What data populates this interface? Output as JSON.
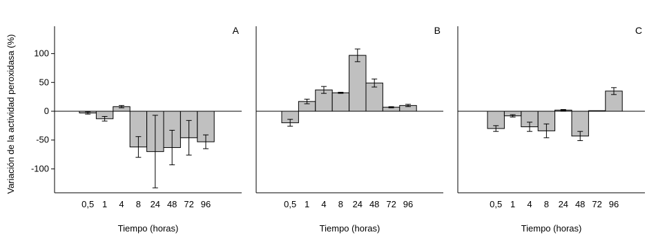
{
  "figure": {
    "ylabel": "Variación de la actividad peroxidasa (%)",
    "yticks": [
      100,
      50,
      0,
      -50,
      -100
    ],
    "colors": {
      "bar_fill": "#c0c0c0",
      "bar_stroke": "#000000",
      "axis": "#000000"
    }
  },
  "chart_data": [
    {
      "type": "bar",
      "panel_label": "A",
      "xlabel": "Tiempo (horas)",
      "categories": [
        "0,5",
        "1",
        "4",
        "8",
        "24",
        "48",
        "72",
        "96"
      ],
      "values": [
        -3,
        -13,
        8,
        -62,
        -70,
        -63,
        -46,
        -53
      ],
      "errors": [
        2,
        4,
        2,
        18,
        63,
        30,
        30,
        12
      ],
      "ylim": [
        -140,
        150
      ]
    },
    {
      "type": "bar",
      "panel_label": "B",
      "xlabel": "Tiempo (horas)",
      "categories": [
        "0,5",
        "1",
        "4",
        "8",
        "24",
        "48",
        "72",
        "96"
      ],
      "values": [
        -20,
        17,
        37,
        32,
        97,
        49,
        7,
        10
      ],
      "errors": [
        6,
        4,
        6,
        1,
        11,
        7,
        1,
        2
      ],
      "ylim": [
        -140,
        150
      ]
    },
    {
      "type": "bar",
      "panel_label": "C",
      "xlabel": "Tiempo (horas)",
      "categories": [
        "0,5",
        "1",
        "4",
        "8",
        "24",
        "48",
        "72",
        "96"
      ],
      "values": [
        -30,
        -8,
        -27,
        -34,
        2,
        -43,
        1,
        35
      ],
      "errors": [
        5,
        2,
        8,
        12,
        1,
        8,
        0,
        6
      ],
      "ylim": [
        -140,
        150
      ]
    }
  ]
}
